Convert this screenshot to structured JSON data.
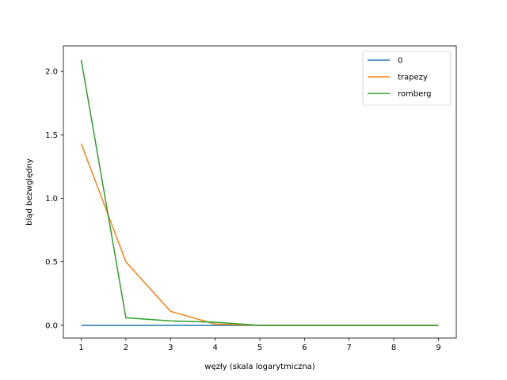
{
  "chart_data": {
    "type": "line",
    "title": "",
    "xlabel": "węzły (skala logarytmiczna)",
    "ylabel": "błąd bezwględny",
    "x": [
      1,
      2,
      3,
      4,
      5,
      6,
      7,
      8,
      9
    ],
    "xlim": [
      0.6,
      9.4
    ],
    "ylim": [
      -0.1,
      2.2
    ],
    "xticks": [
      1,
      2,
      3,
      4,
      5,
      6,
      7,
      8,
      9
    ],
    "yticks": [
      0.0,
      0.5,
      1.0,
      1.5,
      2.0
    ],
    "xtick_labels": [
      "1",
      "2",
      "3",
      "4",
      "5",
      "6",
      "7",
      "8",
      "9"
    ],
    "ytick_labels": [
      "0.0",
      "0.5",
      "1.0",
      "1.5",
      "2.0"
    ],
    "grid": false,
    "legend_position": "top-right",
    "series": [
      {
        "name": "0",
        "color": "#1f77b4",
        "values": [
          0,
          0,
          0,
          0,
          0,
          0,
          0,
          0,
          0
        ]
      },
      {
        "name": "trapezy",
        "color": "#ff7f0e",
        "values": [
          1.43,
          0.5,
          0.11,
          0.01,
          0.0,
          0.0,
          0.0,
          0.0,
          0.0
        ]
      },
      {
        "name": "romberg",
        "color": "#2ca02c",
        "values": [
          2.09,
          0.06,
          0.035,
          0.025,
          0.0,
          0.0,
          0.0,
          0.0,
          0.0
        ]
      }
    ]
  }
}
